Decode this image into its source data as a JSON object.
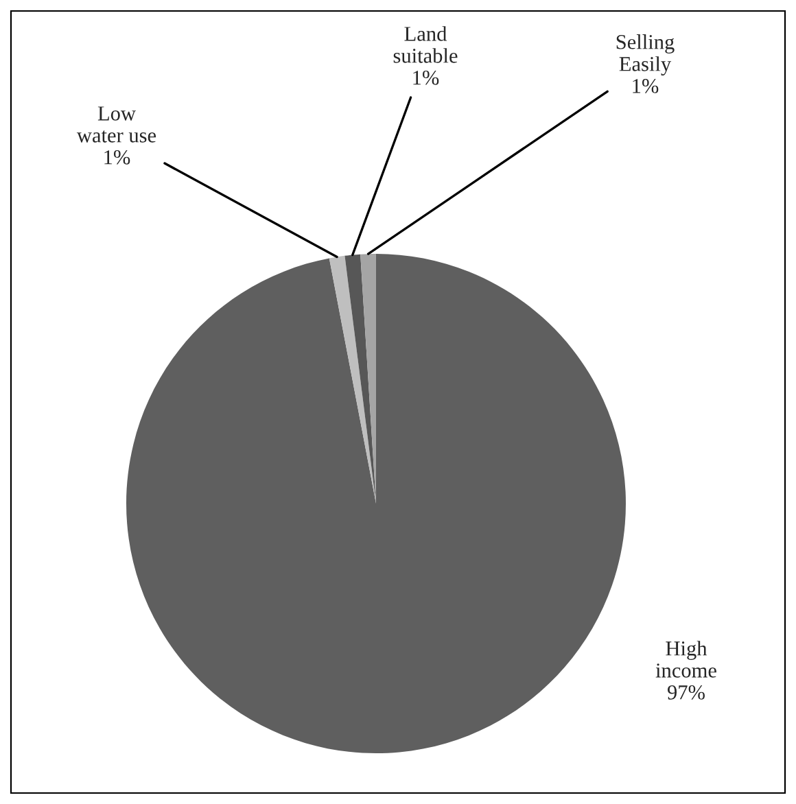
{
  "chart_data": {
    "type": "pie",
    "categories": [
      "High\nincome",
      "Low\nwater use",
      "Land\nsuitable",
      "Selling\nEasily"
    ],
    "values": [
      97,
      1,
      1,
      1
    ],
    "colors": [
      "#5f5f5f",
      "#bfbfbf",
      "#575757",
      "#a5a5a5"
    ],
    "value_labels": [
      "97%",
      "1%",
      "1%",
      "1%"
    ],
    "legend": false
  }
}
